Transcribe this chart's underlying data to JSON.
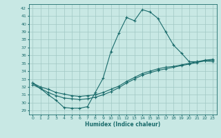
{
  "xlabel": "Humidex (Indice chaleur)",
  "xlim": [
    -0.5,
    23.5
  ],
  "ylim": [
    28.5,
    42.5
  ],
  "xticks": [
    0,
    1,
    2,
    3,
    4,
    5,
    6,
    7,
    8,
    9,
    10,
    11,
    12,
    13,
    14,
    15,
    16,
    17,
    18,
    19,
    20,
    21,
    22,
    23
  ],
  "yticks": [
    29,
    30,
    31,
    32,
    33,
    34,
    35,
    36,
    37,
    38,
    39,
    40,
    41,
    42
  ],
  "bg_color": "#c8e8e4",
  "grid_color": "#a0c8c4",
  "line_color": "#1a6b6b",
  "line1_x": [
    0,
    1,
    2,
    3,
    4,
    5,
    6,
    7,
    8,
    9,
    10,
    11,
    12,
    13,
    14,
    15,
    16,
    17,
    18,
    19,
    20,
    21,
    22,
    23
  ],
  "line1_y": [
    32.5,
    31.8,
    31.0,
    30.3,
    29.4,
    29.3,
    29.3,
    29.5,
    31.3,
    33.1,
    36.5,
    38.8,
    40.8,
    40.4,
    41.8,
    41.5,
    40.7,
    39.0,
    37.3,
    36.3,
    35.2,
    35.2,
    35.3,
    35.2
  ],
  "line2_x": [
    0,
    1,
    2,
    3,
    4,
    5,
    6,
    7,
    8,
    9,
    10,
    11,
    12,
    13,
    14,
    15,
    16,
    17,
    18,
    19,
    20,
    21,
    22,
    23
  ],
  "line2_y": [
    32.5,
    32.0,
    31.7,
    31.3,
    31.1,
    30.9,
    30.8,
    30.9,
    31.0,
    31.3,
    31.7,
    32.1,
    32.7,
    33.2,
    33.7,
    34.0,
    34.3,
    34.5,
    34.6,
    34.8,
    35.0,
    35.2,
    35.4,
    35.5
  ],
  "line3_x": [
    0,
    1,
    2,
    3,
    4,
    5,
    6,
    7,
    8,
    9,
    10,
    11,
    12,
    13,
    14,
    15,
    16,
    17,
    18,
    19,
    20,
    21,
    22,
    23
  ],
  "line3_y": [
    32.3,
    31.8,
    31.3,
    30.9,
    30.6,
    30.5,
    30.4,
    30.5,
    30.7,
    31.0,
    31.4,
    31.9,
    32.5,
    33.0,
    33.5,
    33.8,
    34.1,
    34.3,
    34.5,
    34.7,
    34.9,
    35.1,
    35.3,
    35.4
  ]
}
